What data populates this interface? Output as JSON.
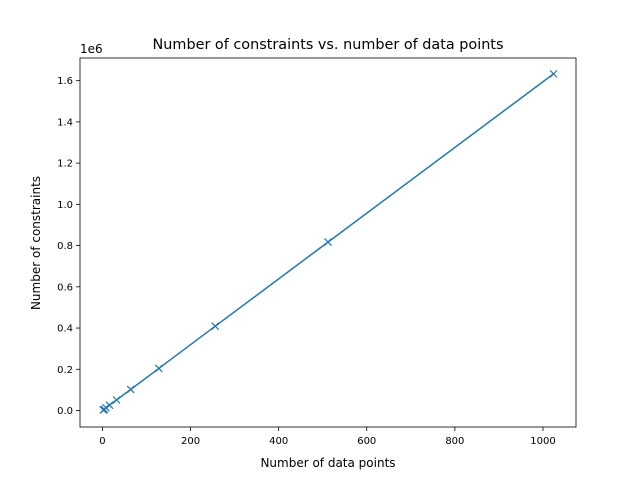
{
  "chart_data": {
    "type": "line",
    "title": "Number of constraints vs. number of data points",
    "xlabel": "Number of data points",
    "ylabel": "Number of constraints",
    "y_offset_label": "1e6",
    "xlim": [
      -51,
      1075
    ],
    "ylim": [
      -0.08,
      1.71
    ],
    "x_ticks": [
      0,
      200,
      400,
      600,
      800,
      1000
    ],
    "x_tick_labels": [
      "0",
      "200",
      "400",
      "600",
      "800",
      "1000"
    ],
    "y_ticks": [
      0.0,
      0.2,
      0.4,
      0.6,
      0.8,
      1.0,
      1.2,
      1.4,
      1.6
    ],
    "y_tick_labels": [
      "0.0",
      "0.2",
      "0.4",
      "0.6",
      "0.8",
      "1.0",
      "1.2",
      "1.4",
      "1.6"
    ],
    "grid": false,
    "marker": "x",
    "series": [
      {
        "color": "#1f77b4",
        "x": [
          2,
          4,
          8,
          16,
          32,
          64,
          128,
          256,
          512,
          1024
        ],
        "y": [
          0.003,
          0.006,
          0.013,
          0.026,
          0.051,
          0.102,
          0.204,
          0.409,
          0.817,
          1.633
        ]
      }
    ]
  }
}
